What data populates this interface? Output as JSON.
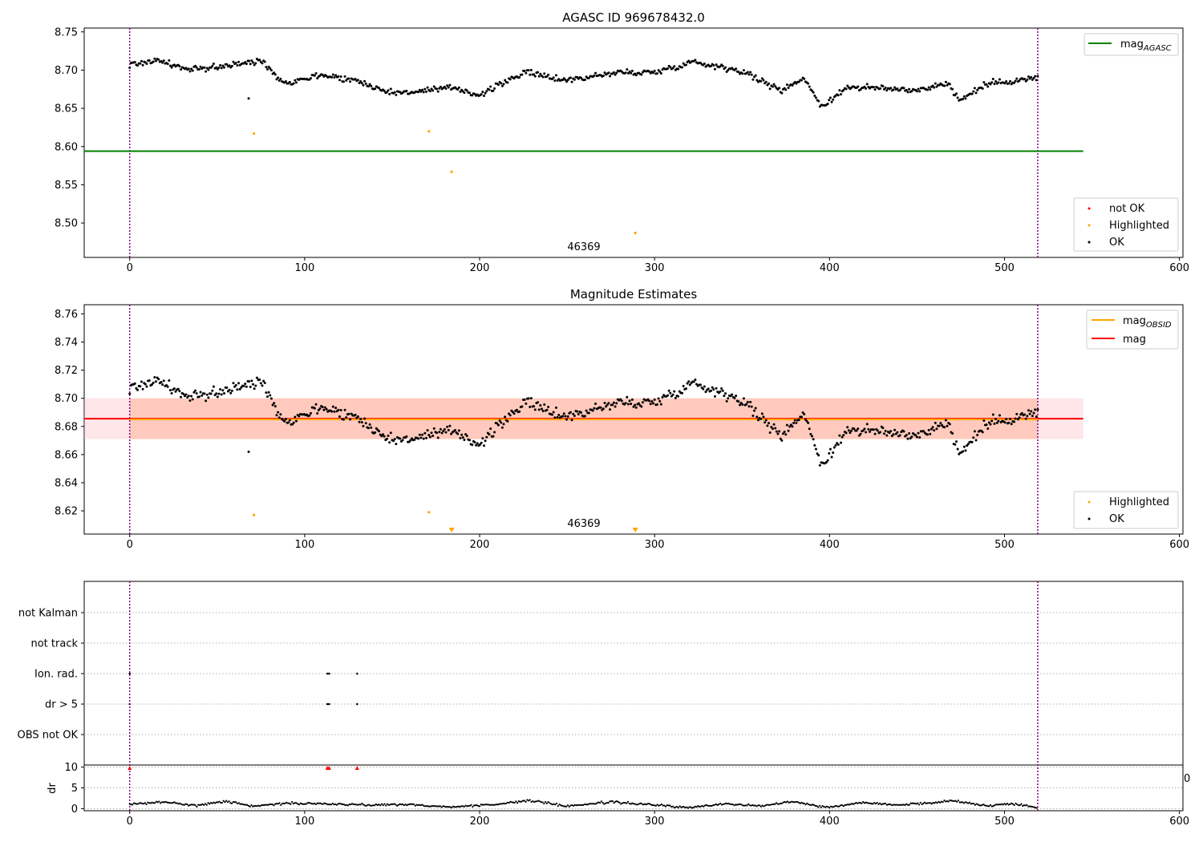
{
  "chart_data": [
    {
      "type": "scatter",
      "title": "AGASC ID 969678432.0",
      "xlim": [
        -26,
        602
      ],
      "ylim": [
        8.455,
        8.755
      ],
      "xticks": [
        0,
        100,
        200,
        300,
        400,
        500,
        600
      ],
      "yticks": [
        8.5,
        8.55,
        8.6,
        8.65,
        8.7,
        8.75
      ],
      "ytick_labels": [
        "8.50",
        "8.55",
        "8.60",
        "8.65",
        "8.70",
        "8.75"
      ],
      "obsid_bounds": [
        0,
        519
      ],
      "obsid_label": "46369",
      "mag_agasc": 8.594,
      "line_xrange": [
        -26,
        545
      ],
      "highlighted": [
        [
          71,
          8.617
        ],
        [
          171,
          8.62
        ],
        [
          184,
          8.567
        ],
        [
          289,
          8.487
        ]
      ],
      "ok_outliers": [
        [
          68,
          8.663
        ]
      ],
      "ok_segments": [
        {
          "x": [
            0,
            16,
            34,
            56,
            76,
            88,
            110,
            130,
            150,
            170,
            186,
            200,
            225,
            250,
            280,
            300,
            322,
            350,
            372,
            385,
            396,
            410,
            450,
            468,
            474,
            490,
            519
          ],
          "y": [
            8.707,
            8.713,
            8.7,
            8.706,
            8.712,
            8.683,
            8.694,
            8.686,
            8.67,
            8.673,
            8.677,
            8.667,
            8.697,
            8.687,
            8.697,
            8.697,
            8.711,
            8.699,
            8.673,
            8.69,
            8.652,
            8.678,
            8.674,
            8.683,
            8.66,
            8.682,
            8.69
          ]
        }
      ],
      "legend_line": "mag",
      "legend_line_sub": "AGASC",
      "legend_markers": [
        "not OK",
        "Highlighted",
        "OK"
      ],
      "colors": {
        "ok": "#000000",
        "highlighted": "#ffa500",
        "not_ok": "#ff0000",
        "agasc": "#008000",
        "obsid": "#800080"
      }
    },
    {
      "type": "scatter",
      "title": "Magnitude Estimates",
      "xlim": [
        -26,
        602
      ],
      "ylim": [
        8.6035,
        8.7665
      ],
      "xticks": [
        0,
        100,
        200,
        300,
        400,
        500,
        600
      ],
      "yticks": [
        8.62,
        8.64,
        8.66,
        8.68,
        8.7,
        8.72,
        8.74,
        8.76
      ],
      "ytick_labels": [
        "8.62",
        "8.64",
        "8.66",
        "8.68",
        "8.70",
        "8.72",
        "8.74",
        "8.76"
      ],
      "obsid_bounds": [
        0,
        519
      ],
      "obsid_label": "46369",
      "mag": 8.6855,
      "mag_obsid": 8.685,
      "band": [
        8.671,
        8.7
      ],
      "band_xrange": [
        -26,
        545
      ],
      "highlighted": [
        [
          71,
          8.617
        ],
        [
          171,
          8.619
        ]
      ],
      "highlighted_clipped": [
        184,
        289
      ],
      "ok_outliers": [
        [
          68,
          8.662
        ]
      ],
      "legend_lines": [
        {
          "label": "mag",
          "sub": "OBSID",
          "color": "#ffa500"
        },
        {
          "label": "mag",
          "sub": "",
          "color": "#ff0000"
        }
      ],
      "legend_markers": [
        "Highlighted",
        "OK"
      ]
    },
    {
      "type": "scatter",
      "flag_labels": [
        "not Kalman",
        "not track",
        "Ion. rad.",
        "dr > 5",
        "OBS not OK"
      ],
      "flag_points": {
        "Ion. rad.": [
          0,
          113,
          114,
          130
        ],
        "dr > 5": [
          0,
          113,
          114,
          130
        ]
      },
      "dr_ylabel": "dr",
      "dr_yticks": [
        0,
        5,
        10
      ],
      "dr_ylim": [
        -0.5,
        10.5
      ],
      "dr_clipped": [
        0,
        113,
        114,
        130
      ],
      "dr_baseline_label": "0",
      "dr_series": {
        "x": [
          0,
          20,
          38,
          55,
          70,
          90,
          110,
          130,
          160,
          180,
          210,
          228,
          250,
          275,
          300,
          320,
          340,
          360,
          378,
          398,
          420,
          440,
          458,
          470,
          490,
          505,
          519
        ],
        "y": [
          1.0,
          1.6,
          0.8,
          1.8,
          0.6,
          1.3,
          1.2,
          0.9,
          1.0,
          0.4,
          1.0,
          2.0,
          0.6,
          1.6,
          0.9,
          0.2,
          1.2,
          0.6,
          1.8,
          0.3,
          1.5,
          0.9,
          1.4,
          1.9,
          0.7,
          1.2,
          0.3
        ]
      }
    }
  ]
}
